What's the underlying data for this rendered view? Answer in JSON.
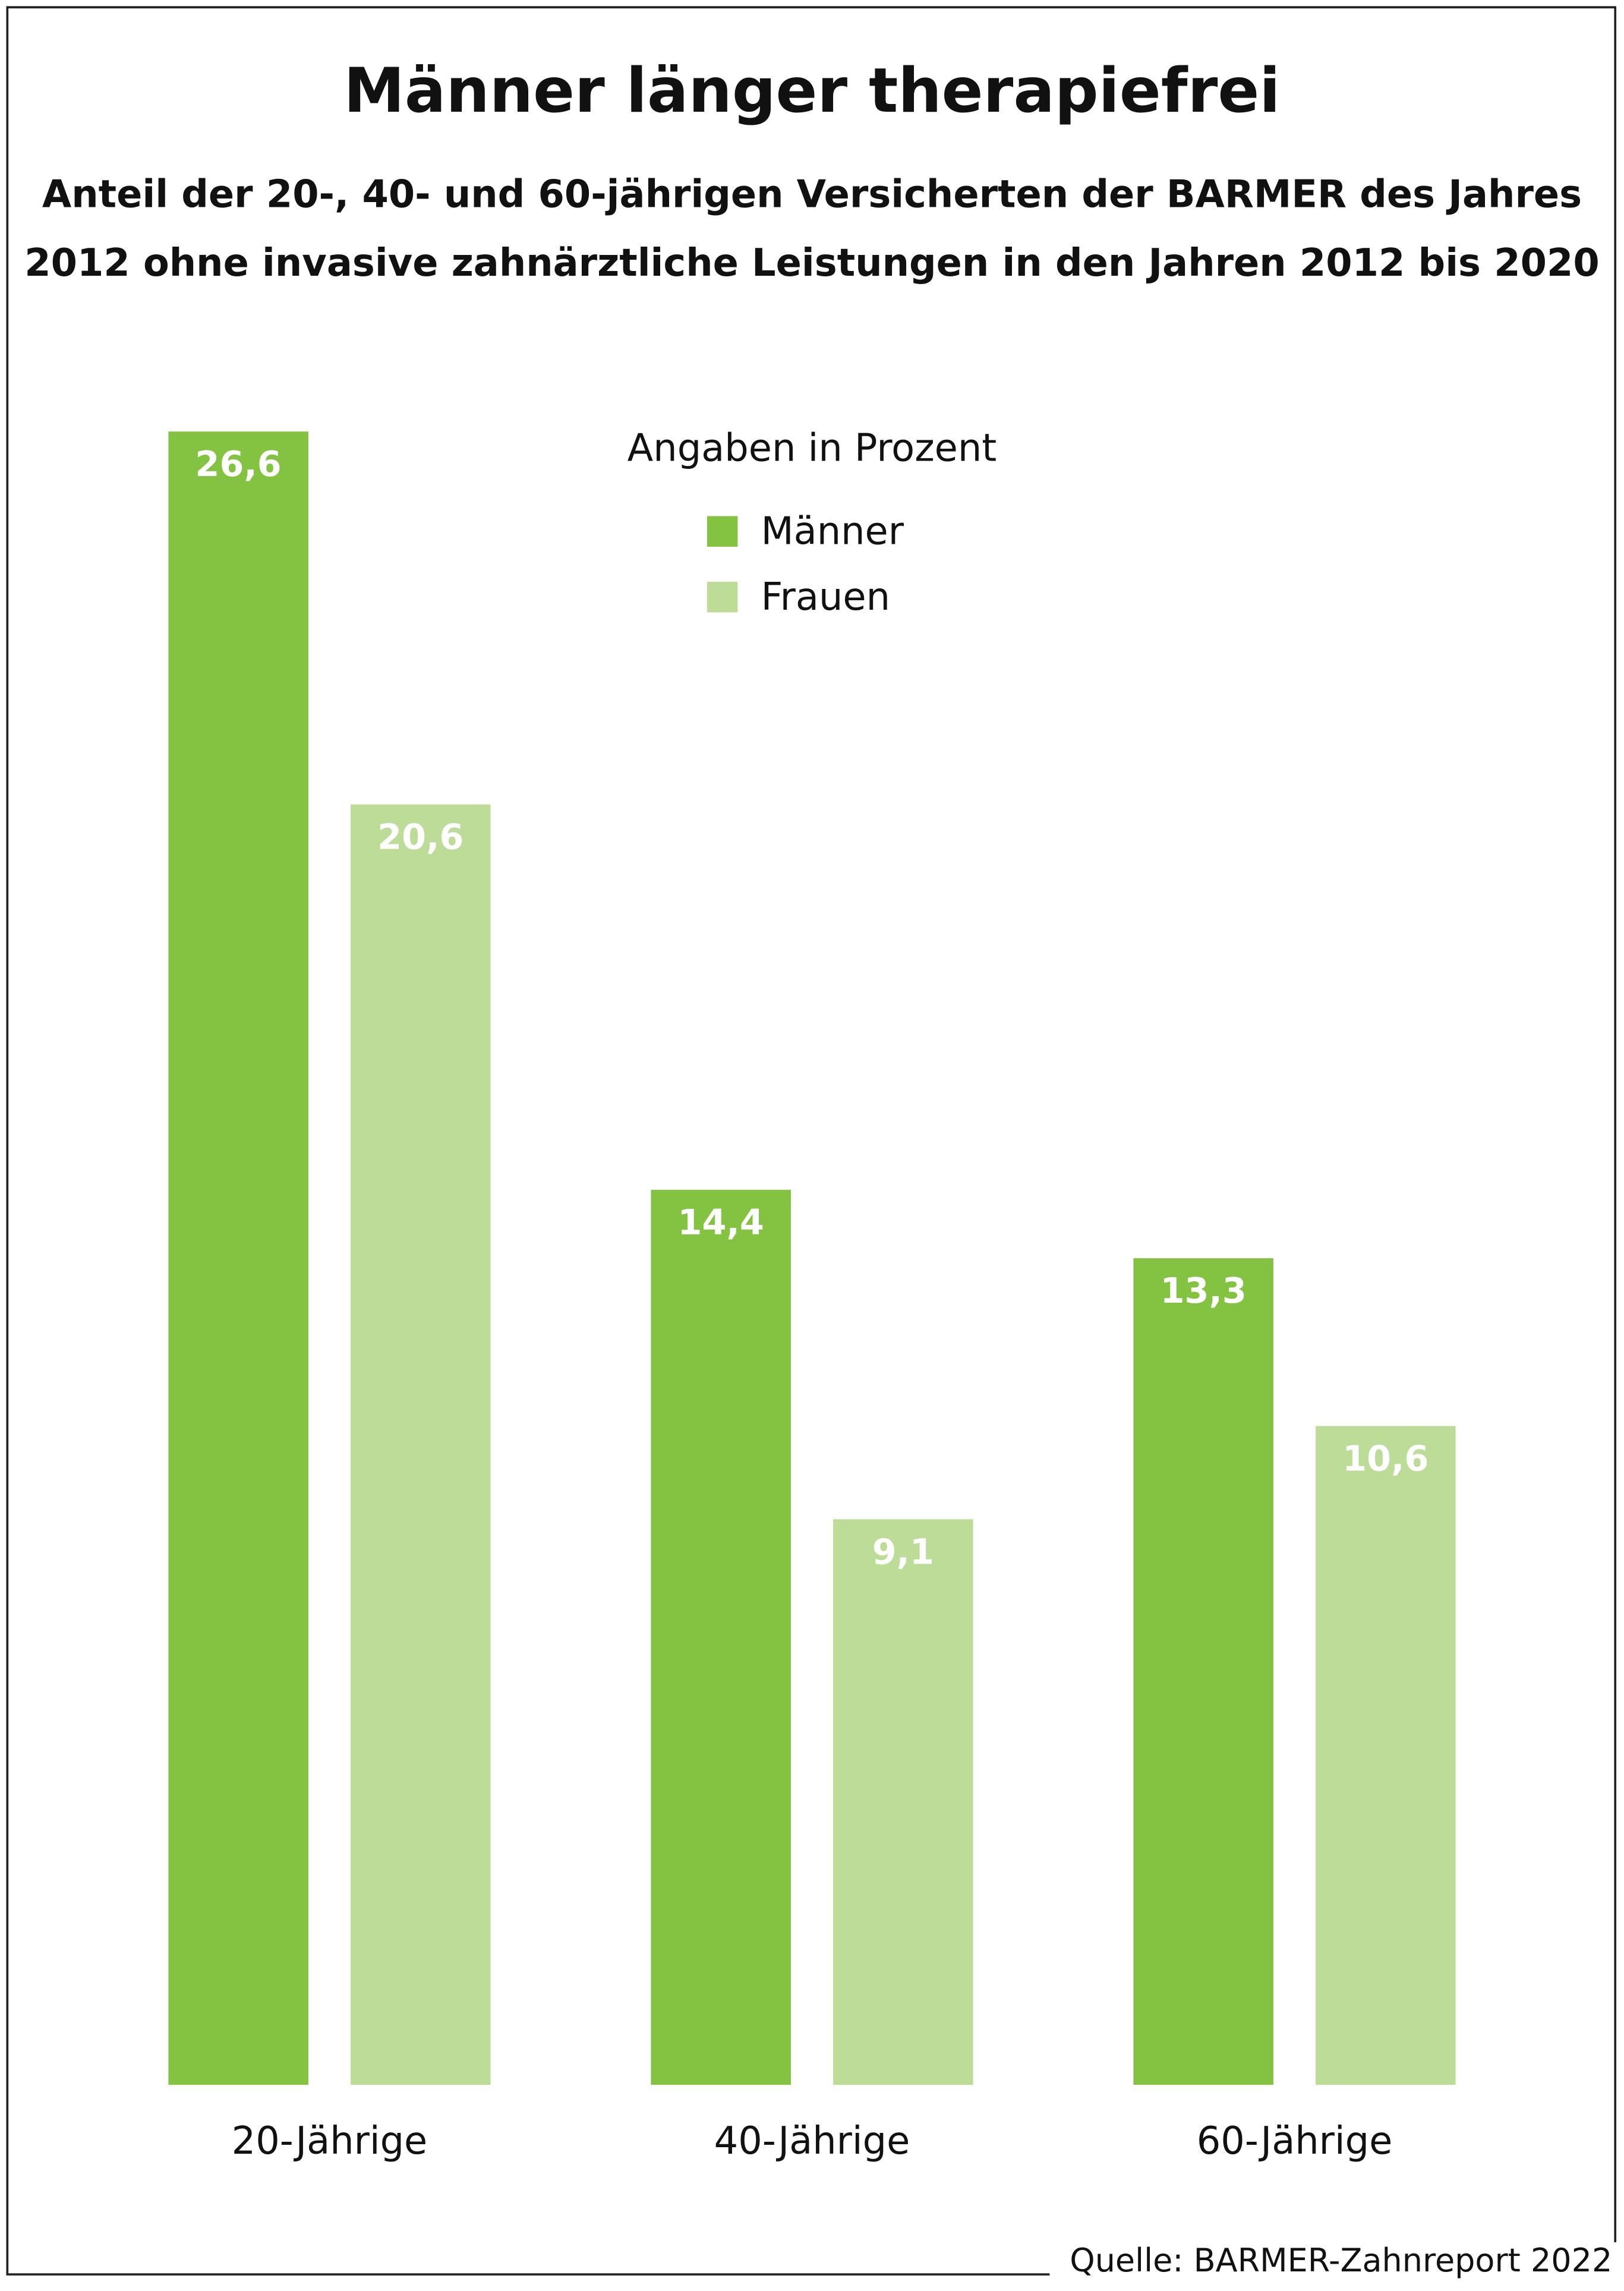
{
  "chart_data": {
    "type": "bar",
    "title": "Männer länger therapiefrei",
    "subtitle": [
      "Anteil der 20-, 40- und 60-jährigen Versicherten der BARMER des Jahres",
      "2012 ohne invasive zahnärztliche Leistungen in den Jahren 2012 bis 2020"
    ],
    "unit_note": "Angaben in Prozent",
    "categories": [
      "20-Jährige",
      "40-Jährige",
      "60-Jährige"
    ],
    "series": [
      {
        "name": "Männer",
        "color": "#84c341",
        "values": [
          26.6,
          14.4,
          13.3
        ],
        "value_labels": [
          "26,6",
          "14,4",
          "13,3"
        ]
      },
      {
        "name": "Frauen",
        "color": "#bddc98",
        "values": [
          20.6,
          9.1,
          10.6
        ],
        "value_labels": [
          "20,6",
          "9,1",
          "10,6"
        ]
      }
    ],
    "source": "Quelle: BARMER-Zahnreport 2022"
  }
}
